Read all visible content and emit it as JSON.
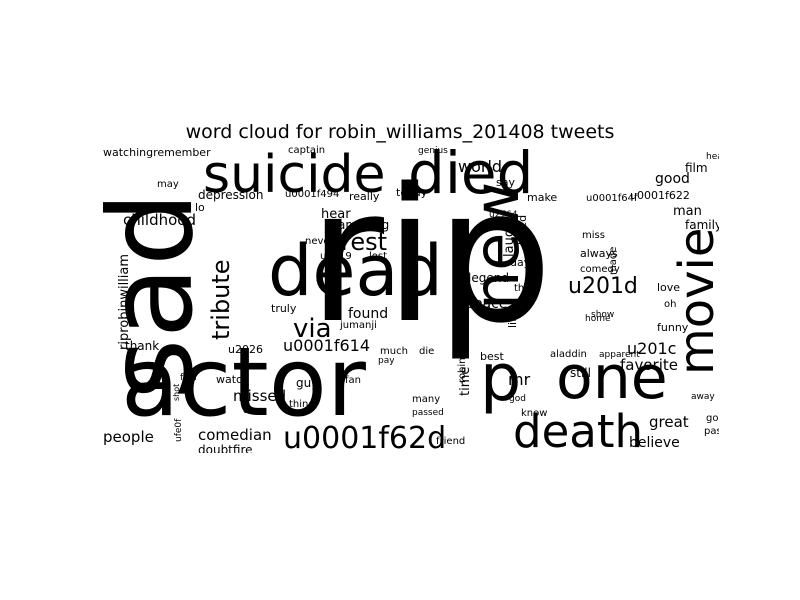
{
  "title": "word cloud for robin_williams_201408 tweets",
  "colors": {
    "background": "#ffffff",
    "words": "#000000"
  },
  "words": [
    "rip",
    "actor",
    "sad",
    "suicide",
    "dead",
    "died",
    "one",
    "death",
    "new",
    "movie",
    "u0001f62d",
    "p",
    "rest",
    "via",
    "tribute",
    "u201d",
    "world",
    "childhood",
    "riprobinwilliam",
    "u0001f614",
    "comedian",
    "missed",
    "people",
    "believe",
    "favorite",
    "great",
    "peace",
    "found",
    "man",
    "good",
    "mr",
    "u201c",
    "legend",
    "time",
    "watchingremember",
    "depression",
    "hear",
    "amazing",
    "laugh",
    "loved",
    "film",
    "family",
    "love",
    "funny",
    "watch",
    "doubtfire",
    "video",
    "thank",
    "day",
    "always",
    "comedy",
    "think",
    "still",
    "know",
    "aladdin",
    "miss",
    "made",
    "today",
    "really",
    "make",
    "say",
    "lo",
    "u0001f494",
    "u0001f64f",
    "u0001f622",
    "gone",
    "passing",
    "away",
    "heart",
    "never",
    "u2019",
    "lost",
    "jumanji",
    "much",
    "die",
    "best",
    "many",
    "passed",
    "friend",
    "god",
    "life",
    "robinwilliam",
    "u2026",
    "guy",
    "even",
    "thing",
    "feel",
    "may",
    "captain",
    "genius",
    "truly",
    "apparent",
    "show",
    "home",
    "oh",
    "pay",
    "fan",
    "u2764",
    "ufe0f",
    "shot"
  ]
}
